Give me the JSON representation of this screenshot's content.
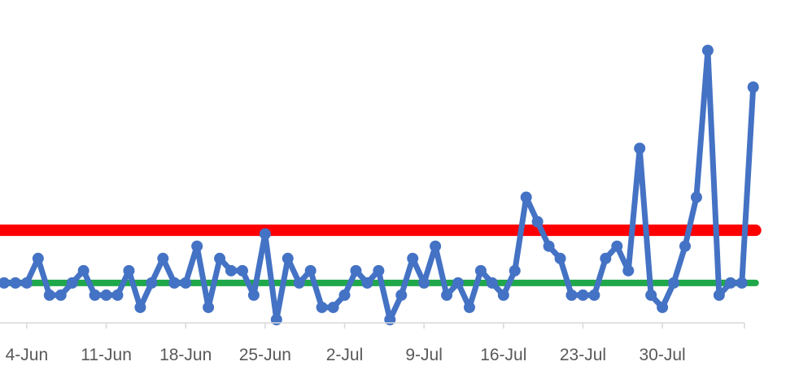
{
  "chart_data": {
    "type": "line",
    "title": "",
    "xlabel": "",
    "ylabel": "",
    "x_tick_labels": [
      "4-Jun",
      "11-Jun",
      "18-Jun",
      "25-Jun",
      "2-Jul",
      "9-Jul",
      "16-Jul",
      "23-Jul",
      "30-Jul"
    ],
    "ylim": [
      0,
      22
    ],
    "series": [
      {
        "color": "#4472C4",
        "values": [
          3,
          3,
          3,
          5,
          2,
          2,
          3,
          4,
          2,
          2,
          2,
          4,
          1,
          3,
          5,
          3,
          3,
          6,
          1,
          5,
          4,
          4,
          2,
          7,
          0,
          5,
          3,
          4,
          1,
          1,
          2,
          4,
          3,
          4,
          0,
          2,
          5,
          3,
          6,
          2,
          3,
          1,
          4,
          3,
          2,
          4,
          10,
          8,
          6,
          5,
          2,
          2,
          2,
          5,
          6,
          4,
          14,
          2,
          1,
          3,
          6,
          10,
          22,
          2,
          3,
          3,
          19
        ]
      }
    ],
    "reference_lines": [
      {
        "color": "#FF0000",
        "value": 7.3
      },
      {
        "color": "#1FA84A",
        "value": 3.0
      }
    ],
    "grid": false,
    "legend": "none"
  }
}
